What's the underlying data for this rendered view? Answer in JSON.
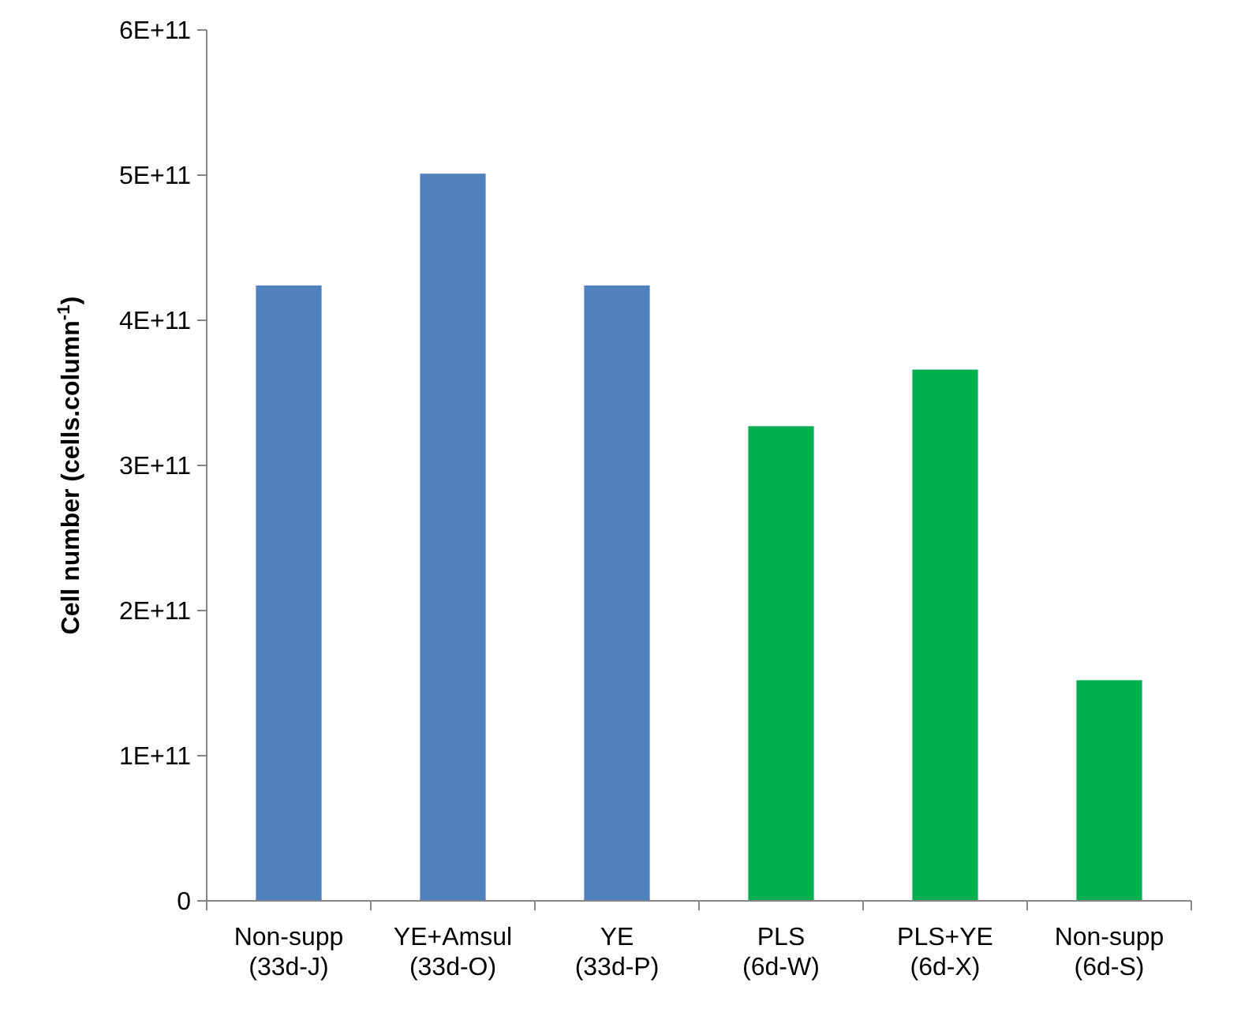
{
  "chart_data": {
    "type": "bar",
    "ylabel": "Cell number (cells.column$^{-1}$)",
    "categories": [
      "Non-supp\n(33d-J)",
      "YE+Amsul\n(33d-O)",
      "YE\n(33d-P)",
      "PLS\n(6d-W)",
      "PLS+YE\n(6d-X)",
      "Non-supp\n(6d-S)"
    ],
    "values": [
      424000000000.0,
      501000000000.0,
      424000000000.0,
      327000000000.0,
      366000000000.0,
      152000000000.0
    ],
    "colors": [
      "#4f81bd",
      "#4f81bd",
      "#4f81bd",
      "#00b050",
      "#00b050",
      "#00b050"
    ],
    "ylim": [
      0,
      600000000000.0
    ],
    "yticks": [
      0,
      {
        "value": 100000000000.0,
        "label": "1E+11"
      },
      {
        "value": 200000000000.0,
        "label": "2E+11"
      },
      {
        "value": 300000000000.0,
        "label": "3E+11"
      },
      {
        "value": 400000000000.0,
        "label": "4E+11"
      },
      {
        "value": 500000000000.0,
        "label": "5E+11"
      },
      {
        "value": 600000000000.0,
        "label": "6E+11"
      }
    ],
    "grid": false
  }
}
